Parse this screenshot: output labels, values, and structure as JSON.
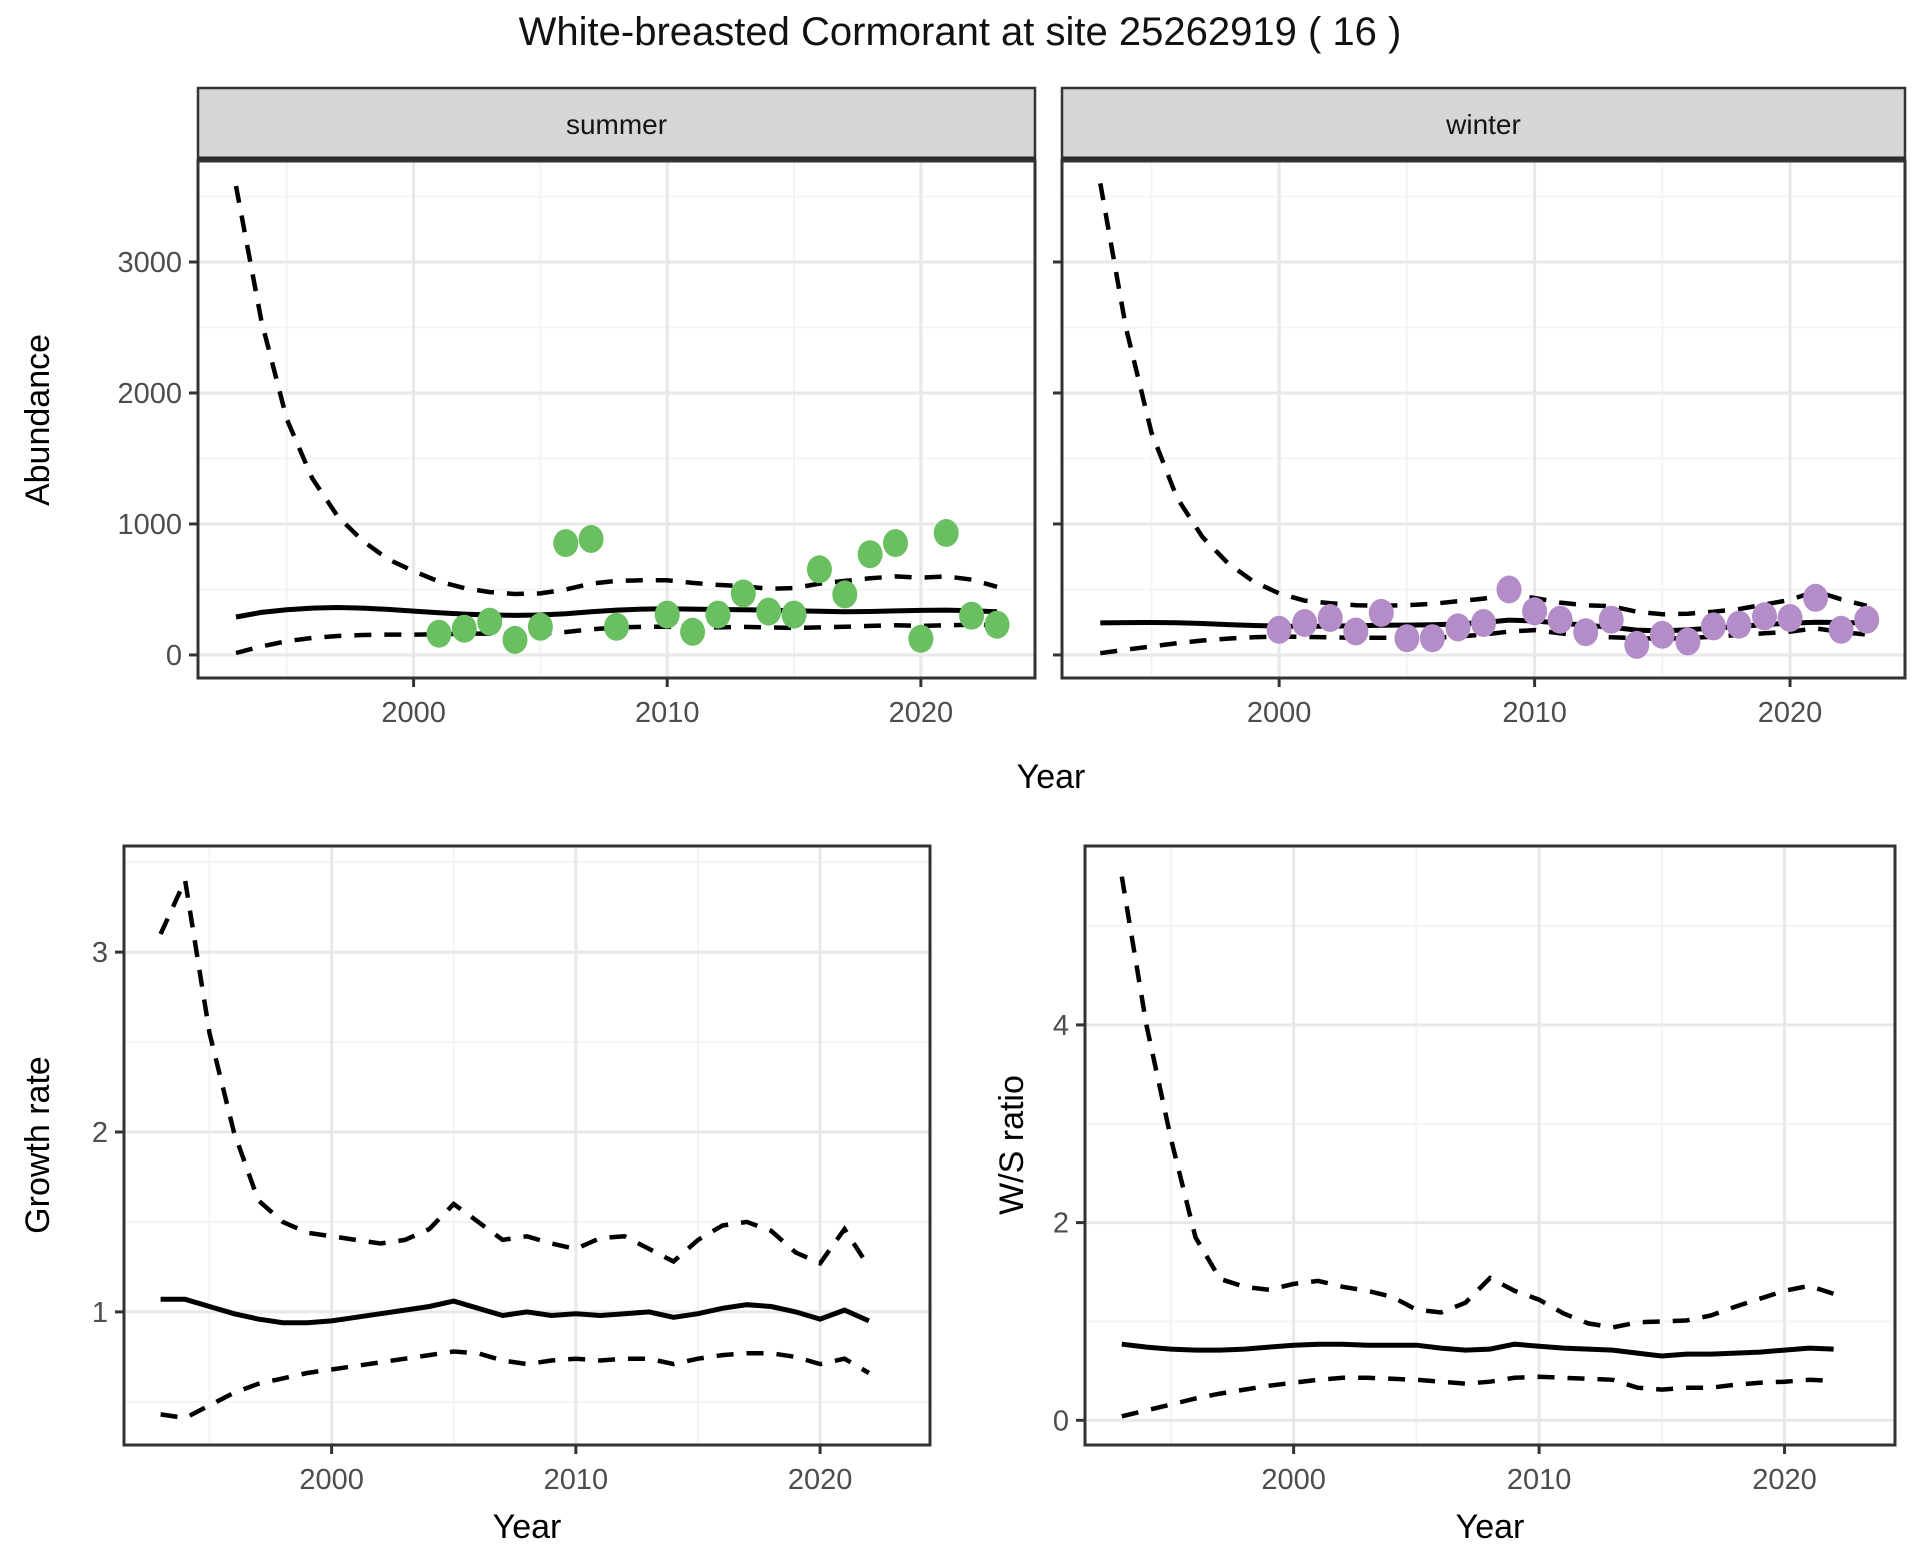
{
  "title": "White-breasted Cormorant at site 25262919 ( 16 )",
  "labels": {
    "facet_summer": "summer",
    "facet_winter": "winter",
    "abundance_ylabel": "Abundance",
    "growth_ylabel": "Growth rate",
    "ws_ylabel": "W/S ratio",
    "top_xlabel": "Year",
    "bottom_left_xlabel": "Year",
    "bottom_right_xlabel": "Year"
  },
  "colors": {
    "summer_point": "#6abf61",
    "winter_point": "#b48cc8",
    "line": "#000000",
    "strip_bg": "#d6d6d6",
    "panel_border": "#333333",
    "grid_major": "#e8e8e8",
    "grid_minor": "#f4f4f4",
    "tick_label": "#4d4d4d",
    "tick_mark": "#333333"
  },
  "chart_data": [
    {
      "id": "abundance-summer",
      "type": "line",
      "facet": "summer",
      "ylabel": "Abundance",
      "xlabel": "Year",
      "xlim": [
        1991.5,
        2024.5
      ],
      "ylim": [
        -176,
        3771
      ],
      "x_ticks": [
        2000,
        2010,
        2020
      ],
      "x_minor": [
        1995,
        2005,
        2015
      ],
      "y_ticks": [
        0,
        1000,
        2000,
        3000
      ],
      "y_minor": [
        500,
        1500,
        2500,
        3500
      ],
      "grid": true,
      "series": [
        {
          "name": "median",
          "style": "solid",
          "x_start": 1993,
          "values": [
            290,
            325,
            345,
            358,
            362,
            358,
            348,
            335,
            322,
            312,
            305,
            302,
            305,
            315,
            330,
            342,
            350,
            352,
            350,
            347,
            345,
            342,
            338,
            333,
            330,
            332,
            336,
            340,
            342,
            338,
            330
          ]
        },
        {
          "name": "upper-ci",
          "style": "dashed",
          "x_start": 1993,
          "values": [
            3580,
            2550,
            1800,
            1350,
            1060,
            870,
            730,
            640,
            560,
            510,
            480,
            465,
            470,
            500,
            545,
            565,
            570,
            570,
            550,
            535,
            525,
            505,
            510,
            545,
            565,
            585,
            600,
            590,
            600,
            575,
            520
          ]
        },
        {
          "name": "lower-ci",
          "style": "dashed",
          "x_start": 1993,
          "values": [
            15,
            65,
            105,
            130,
            145,
            152,
            155,
            155,
            158,
            162,
            163,
            160,
            163,
            175,
            195,
            210,
            215,
            215,
            212,
            210,
            214,
            210,
            206,
            210,
            215,
            222,
            227,
            222,
            226,
            230,
            228
          ]
        }
      ],
      "points": {
        "name": "observed-abundance-summer",
        "color_key": "summer_point",
        "data": [
          [
            2001,
            162
          ],
          [
            2002,
            200
          ],
          [
            2003,
            254
          ],
          [
            2004,
            115
          ],
          [
            2005,
            215
          ],
          [
            2006,
            854
          ],
          [
            2007,
            885
          ],
          [
            2008,
            215
          ],
          [
            2010,
            308
          ],
          [
            2011,
            177
          ],
          [
            2012,
            308
          ],
          [
            2013,
            469
          ],
          [
            2014,
            331
          ],
          [
            2015,
            308
          ],
          [
            2016,
            654
          ],
          [
            2017,
            462
          ],
          [
            2018,
            769
          ],
          [
            2019,
            854
          ],
          [
            2020,
            123
          ],
          [
            2021,
            931
          ],
          [
            2022,
            300
          ],
          [
            2023,
            231
          ]
        ]
      }
    },
    {
      "id": "abundance-winter",
      "type": "line",
      "facet": "winter",
      "ylabel": "Abundance",
      "xlabel": "Year",
      "xlim": [
        1991.5,
        2024.5
      ],
      "ylim": [
        -176,
        3771
      ],
      "x_ticks": [
        2000,
        2010,
        2020
      ],
      "x_minor": [
        1995,
        2005,
        2015
      ],
      "y_ticks": [
        0,
        1000,
        2000,
        3000
      ],
      "y_minor": [
        500,
        1500,
        2500,
        3500
      ],
      "y_tick_labels_shown": false,
      "grid": true,
      "series": [
        {
          "name": "median",
          "style": "solid",
          "x_start": 1993,
          "values": [
            245,
            247,
            248,
            246,
            240,
            232,
            225,
            220,
            218,
            220,
            223,
            226,
            228,
            230,
            236,
            248,
            266,
            260,
            243,
            226,
            212,
            190,
            183,
            192,
            205,
            218,
            232,
            242,
            250,
            248,
            243
          ]
        },
        {
          "name": "upper-ci",
          "style": "dashed",
          "x_start": 1993,
          "values": [
            3600,
            2500,
            1700,
            1200,
            900,
            700,
            560,
            470,
            415,
            395,
            380,
            375,
            380,
            390,
            410,
            430,
            462,
            435,
            400,
            380,
            372,
            330,
            310,
            315,
            330,
            350,
            385,
            420,
            487,
            425,
            375
          ]
        },
        {
          "name": "lower-ci",
          "style": "dashed",
          "x_start": 1993,
          "values": [
            13,
            40,
            65,
            90,
            110,
            125,
            135,
            141,
            138,
            135,
            131,
            132,
            130,
            132,
            140,
            155,
            178,
            190,
            165,
            143,
            135,
            128,
            125,
            128,
            140,
            152,
            165,
            178,
            203,
            175,
            155
          ]
        }
      ],
      "points": {
        "name": "observed-abundance-winter",
        "color_key": "winter_point",
        "data": [
          [
            2000,
            192
          ],
          [
            2001,
            244
          ],
          [
            2002,
            282
          ],
          [
            2003,
            179
          ],
          [
            2004,
            321
          ],
          [
            2005,
            128
          ],
          [
            2006,
            128
          ],
          [
            2007,
            210
          ],
          [
            2008,
            244
          ],
          [
            2009,
            500
          ],
          [
            2010,
            333
          ],
          [
            2011,
            269
          ],
          [
            2012,
            174
          ],
          [
            2013,
            269
          ],
          [
            2014,
            77
          ],
          [
            2015,
            154
          ],
          [
            2016,
            103
          ],
          [
            2017,
            218
          ],
          [
            2018,
            231
          ],
          [
            2019,
            295
          ],
          [
            2020,
            282
          ],
          [
            2021,
            436
          ],
          [
            2022,
            192
          ],
          [
            2023,
            269
          ]
        ]
      }
    },
    {
      "id": "growth-rate",
      "type": "line",
      "facet": null,
      "ylabel": "Growth rate",
      "xlabel": "Year",
      "xlim": [
        1991.5,
        2024.5
      ],
      "ylim": [
        0.26,
        3.59
      ],
      "x_ticks": [
        2000,
        2010,
        2020
      ],
      "x_minor": [
        1995,
        2005,
        2015
      ],
      "y_ticks": [
        1,
        2,
        3
      ],
      "y_minor": [
        0.5,
        1.5,
        2.5,
        3.5
      ],
      "grid": true,
      "series": [
        {
          "name": "median",
          "style": "solid",
          "x_start": 1993,
          "values": [
            1.07,
            1.07,
            1.03,
            0.99,
            0.96,
            0.94,
            0.94,
            0.95,
            0.97,
            0.99,
            1.01,
            1.03,
            1.06,
            1.02,
            0.98,
            1.0,
            0.98,
            0.99,
            0.98,
            0.99,
            1.0,
            0.97,
            0.99,
            1.02,
            1.04,
            1.03,
            1.0,
            0.96,
            1.01,
            0.95
          ]
        },
        {
          "name": "upper-ci",
          "style": "dashed",
          "x_start": 1993,
          "values": [
            3.1,
            3.4,
            2.55,
            2.0,
            1.62,
            1.5,
            1.44,
            1.42,
            1.4,
            1.38,
            1.4,
            1.46,
            1.6,
            1.5,
            1.4,
            1.42,
            1.38,
            1.35,
            1.41,
            1.42,
            1.35,
            1.28,
            1.4,
            1.48,
            1.5,
            1.45,
            1.33,
            1.27,
            1.46,
            1.25
          ]
        },
        {
          "name": "lower-ci",
          "style": "dashed",
          "x_start": 1993,
          "values": [
            0.43,
            0.41,
            0.48,
            0.55,
            0.6,
            0.63,
            0.66,
            0.68,
            0.7,
            0.72,
            0.74,
            0.76,
            0.78,
            0.77,
            0.73,
            0.71,
            0.73,
            0.74,
            0.73,
            0.74,
            0.74,
            0.71,
            0.74,
            0.76,
            0.77,
            0.77,
            0.75,
            0.71,
            0.74,
            0.66
          ]
        }
      ],
      "points": null
    },
    {
      "id": "ws-ratio",
      "type": "line",
      "facet": null,
      "ylabel": "W/S ratio",
      "xlabel": "Year",
      "xlim": [
        1991.5,
        2024.5
      ],
      "ylim": [
        -0.25,
        5.81
      ],
      "x_ticks": [
        2000,
        2010,
        2020
      ],
      "x_minor": [
        1995,
        2005,
        2015
      ],
      "y_ticks": [
        0,
        2,
        4
      ],
      "y_minor": [
        1,
        3,
        5
      ],
      "grid": true,
      "series": [
        {
          "name": "median",
          "style": "solid",
          "x_start": 1993,
          "values": [
            0.77,
            0.74,
            0.72,
            0.71,
            0.71,
            0.72,
            0.74,
            0.76,
            0.77,
            0.77,
            0.76,
            0.76,
            0.76,
            0.73,
            0.71,
            0.72,
            0.77,
            0.75,
            0.73,
            0.72,
            0.71,
            0.68,
            0.65,
            0.67,
            0.67,
            0.68,
            0.69,
            0.71,
            0.73,
            0.72
          ]
        },
        {
          "name": "upper-ci",
          "style": "dashed",
          "x_start": 1993,
          "values": [
            5.5,
            4.0,
            2.85,
            1.85,
            1.43,
            1.35,
            1.32,
            1.38,
            1.41,
            1.35,
            1.31,
            1.25,
            1.12,
            1.09,
            1.19,
            1.44,
            1.31,
            1.22,
            1.08,
            0.98,
            0.94,
            0.99,
            1.0,
            1.01,
            1.06,
            1.15,
            1.23,
            1.31,
            1.36,
            1.28
          ]
        },
        {
          "name": "lower-ci",
          "style": "dashed",
          "x_start": 1993,
          "values": [
            0.04,
            0.1,
            0.16,
            0.22,
            0.27,
            0.31,
            0.35,
            0.38,
            0.41,
            0.43,
            0.43,
            0.42,
            0.41,
            0.39,
            0.37,
            0.39,
            0.43,
            0.44,
            0.43,
            0.42,
            0.41,
            0.33,
            0.31,
            0.33,
            0.33,
            0.36,
            0.38,
            0.39,
            0.41,
            0.4
          ]
        }
      ],
      "points": null
    }
  ]
}
